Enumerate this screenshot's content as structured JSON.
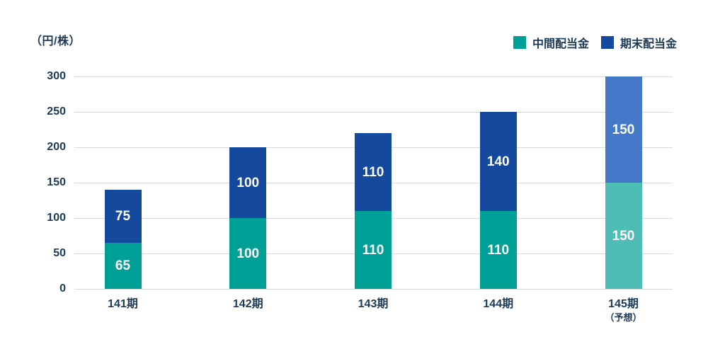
{
  "unit_label": "（円/株）",
  "legend": {
    "items": [
      {
        "label": "中間配当金",
        "color": "#00A096"
      },
      {
        "label": "期末配当金",
        "color": "#14499E"
      }
    ]
  },
  "chart_data": {
    "type": "bar",
    "stacked": true,
    "title": "",
    "ylabel": "（円/株）",
    "categories": [
      "141期",
      "142期",
      "143期",
      "144期",
      "145期"
    ],
    "category_sublabels": [
      "",
      "",
      "",
      "",
      "（予想）"
    ],
    "series": [
      {
        "name": "中間配当金",
        "values": [
          65,
          100,
          110,
          110,
          150
        ],
        "color": "#00A096",
        "forecast_color": "#4DBDB5"
      },
      {
        "name": "期末配当金",
        "values": [
          75,
          100,
          110,
          140,
          150
        ],
        "color": "#14499E",
        "forecast_color": "#4478C8"
      }
    ],
    "forecast_index": 4,
    "ylim": [
      0,
      300
    ],
    "ytick_step": 50,
    "yticks": [
      0,
      50,
      100,
      150,
      200,
      250,
      300
    ],
    "grid": true,
    "legend_position": "top-right",
    "gridline_color": "#D9D9D9",
    "text_color": "#1D3A56",
    "bar_label_color": "#FFFFFF"
  }
}
